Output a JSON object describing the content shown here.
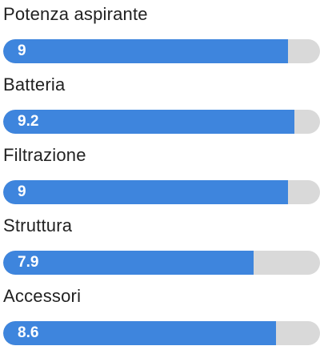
{
  "ratings": [
    {
      "label": "Potenza aspirante",
      "value": "9",
      "fill_fraction": 0.9
    },
    {
      "label": "Batteria",
      "value": "9.2",
      "fill_fraction": 0.92
    },
    {
      "label": "Filtrazione",
      "value": "9",
      "fill_fraction": 0.9
    },
    {
      "label": "Struttura",
      "value": "7.9",
      "fill_fraction": 0.79
    },
    {
      "label": "Accessori",
      "value": "8.6",
      "fill_fraction": 0.86
    }
  ],
  "colors": {
    "bar_fill": "#3e85dd",
    "bar_track": "#d9d9d9",
    "label_text": "#222222",
    "value_text": "#ffffff"
  }
}
